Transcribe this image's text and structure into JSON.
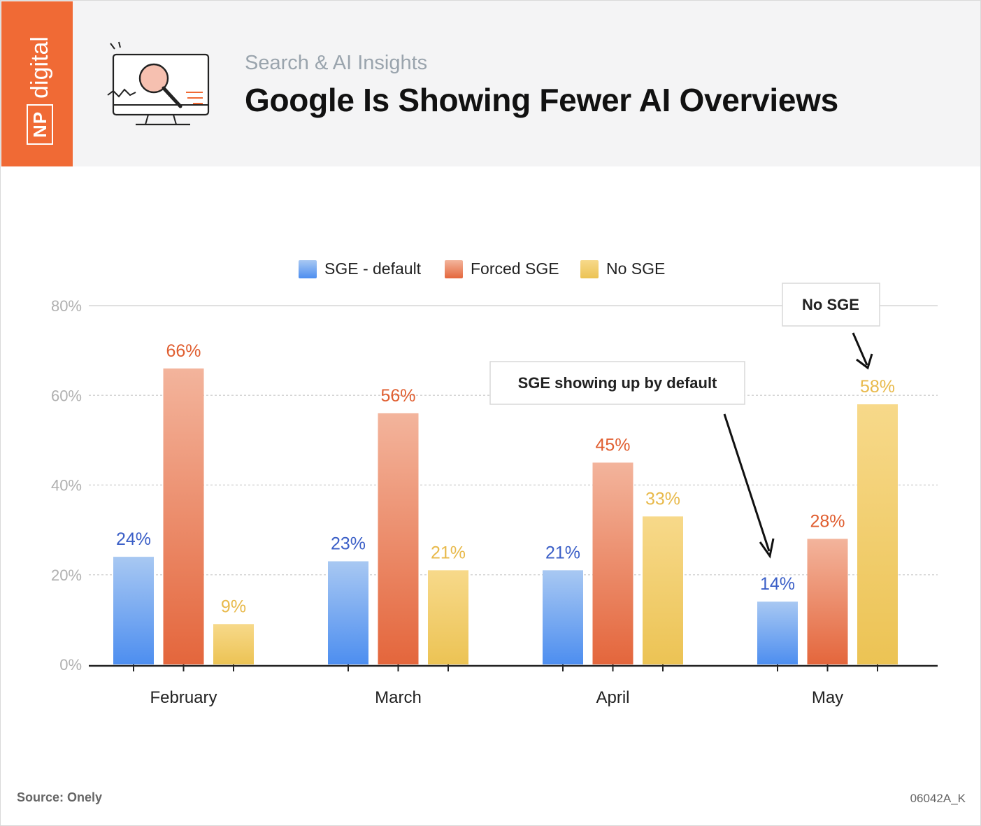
{
  "brand": {
    "np": "NP",
    "digital": "digital"
  },
  "header": {
    "subtitle": "Search & AI Insights",
    "title": "Google Is Showing Fewer AI Overviews"
  },
  "chart_data": {
    "type": "bar",
    "categories": [
      "February",
      "March",
      "April",
      "May"
    ],
    "series": [
      {
        "name": "SGE - default",
        "values": [
          24,
          23,
          21,
          14
        ],
        "labels": [
          "24%",
          "23%",
          "21%",
          "14%"
        ],
        "color_top": "#a8c8f2",
        "color_bottom": "#4d8ef0",
        "label_color": "#3b5fc7"
      },
      {
        "name": "Forced SGE",
        "values": [
          66,
          56,
          45,
          28
        ],
        "labels": [
          "66%",
          "56%",
          "45%",
          "28%"
        ],
        "color_top": "#f3b49c",
        "color_bottom": "#e4663c",
        "label_color": "#e05e30"
      },
      {
        "name": "No SGE",
        "values": [
          9,
          21,
          33,
          58
        ],
        "labels": [
          "9%",
          "21%",
          "33%",
          "58%"
        ],
        "color_top": "#f7d98a",
        "color_bottom": "#ecc354",
        "label_color": "#e8b94a"
      }
    ],
    "ylim": [
      0,
      80
    ],
    "yticks": [
      "0%",
      "20%",
      "40%",
      "60%",
      "80%"
    ],
    "grid": true,
    "legend_position": "top-center",
    "annotations": [
      "SGE showing up by default",
      "No SGE"
    ]
  },
  "footer": {
    "source": "Source:  Onely",
    "code": "06042A_K"
  }
}
